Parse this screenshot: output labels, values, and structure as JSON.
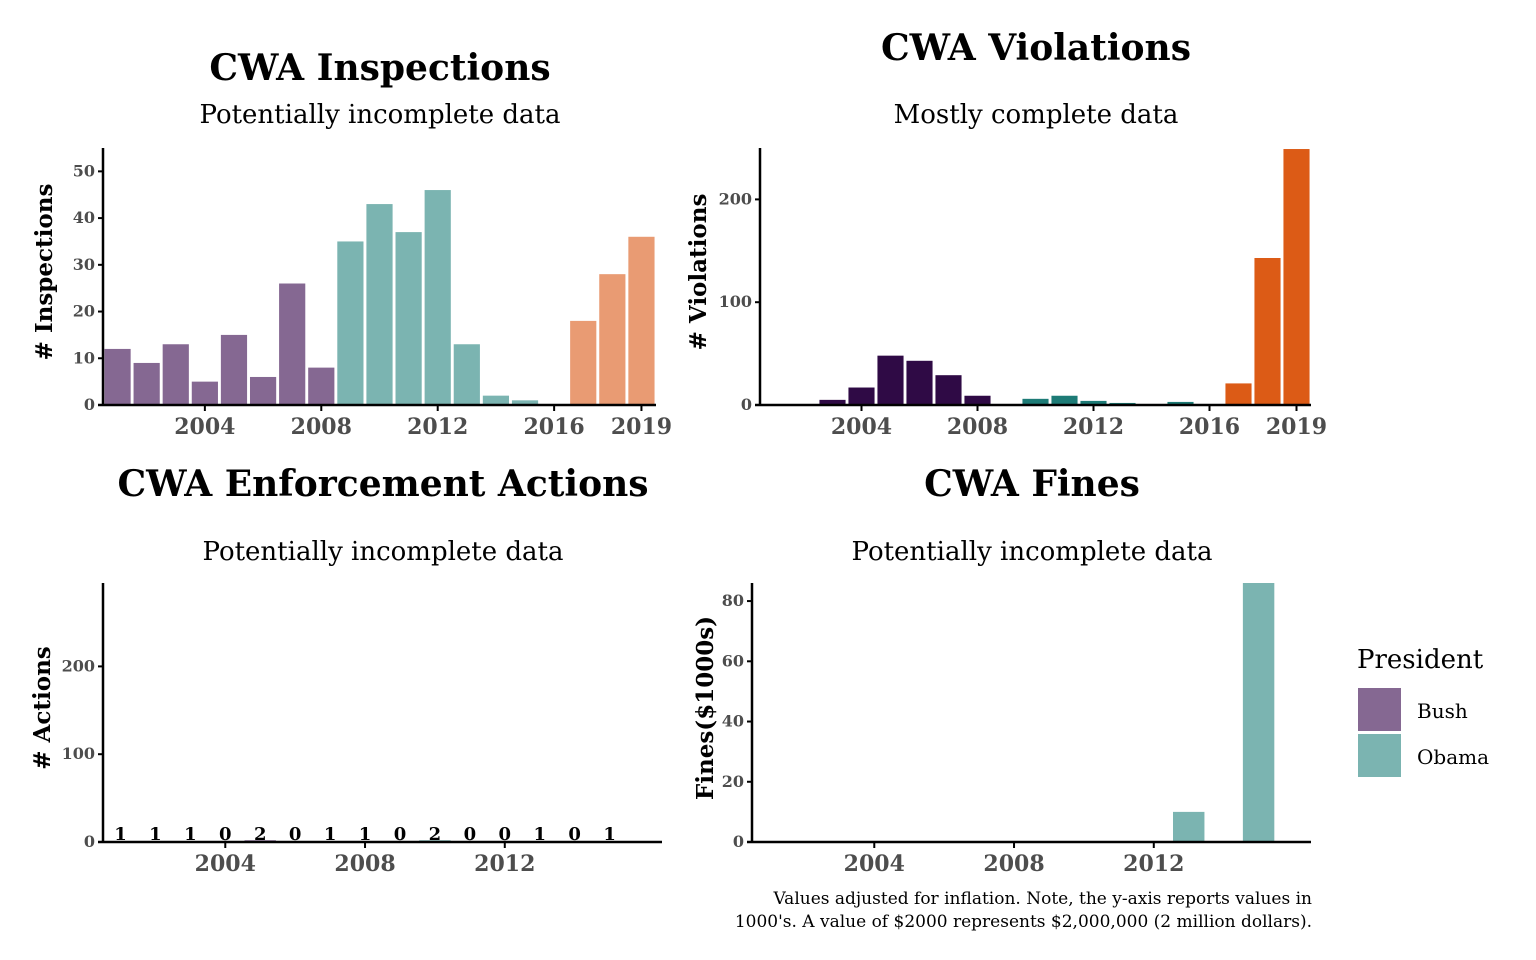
{
  "colors": {
    "bush": "#856892",
    "obama": "#7bb4b1",
    "trump": "#e99b73",
    "bush_dark": "#2f0a45",
    "obama_dark": "#1d7b76",
    "trump_dark": "#dc5b16"
  },
  "legend": {
    "title": "President",
    "items": [
      {
        "label": "Bush",
        "color": "#856892"
      },
      {
        "label": "Obama",
        "color": "#7bb4b1"
      }
    ]
  },
  "caption": {
    "line1": "Values adjusted for inflation. Note, the y-axis reports values in",
    "line2": "1000's. A value of $2000 represents $2,000,000 (2 million dollars)."
  },
  "chart_data": [
    {
      "id": "inspections",
      "type": "bar",
      "title": "CWA Inspections",
      "subtitle": "Potentially incomplete data",
      "ylabel": "# Inspections",
      "xlabel": "",
      "xlim": [
        2000.5,
        2019.5
      ],
      "ylim": [
        0,
        55
      ],
      "xticks": [
        "2004",
        "2008",
        "2012",
        "2016",
        "2019"
      ],
      "yticks": [
        "0",
        "10",
        "20",
        "30",
        "40",
        "50"
      ],
      "series": [
        {
          "name": "Bush",
          "color": "#856892",
          "x": [
            2001,
            2002,
            2003,
            2004,
            2005,
            2006,
            2007,
            2008
          ],
          "values": [
            12,
            9,
            13,
            5,
            15,
            6,
            26,
            8
          ]
        },
        {
          "name": "Obama",
          "color": "#7bb4b1",
          "x": [
            2009,
            2010,
            2011,
            2012,
            2013,
            2014,
            2015,
            2016
          ],
          "values": [
            35,
            43,
            37,
            46,
            13,
            2,
            1,
            0
          ]
        },
        {
          "color": "#e99b73",
          "x": [
            2017,
            2018,
            2019
          ],
          "values": [
            18,
            28,
            36
          ]
        }
      ]
    },
    {
      "id": "violations",
      "type": "bar",
      "title": "CWA Violations",
      "subtitle": "Mostly complete data",
      "ylabel": "# Violations",
      "xlabel": "",
      "xlim": [
        2000.5,
        2019.5
      ],
      "ylim": [
        0,
        250
      ],
      "xticks": [
        "2004",
        "2008",
        "2012",
        "2016",
        "2019"
      ],
      "yticks": [
        "0",
        "100",
        "200"
      ],
      "series": [
        {
          "name": "Bush",
          "color": "#2f0a45",
          "x": [
            2003,
            2004,
            2005,
            2006,
            2007,
            2008
          ],
          "values": [
            5,
            17,
            48,
            43,
            29,
            9
          ]
        },
        {
          "name": "Obama",
          "color": "#1d7b76",
          "x": [
            2010,
            2011,
            2012,
            2013,
            2015
          ],
          "values": [
            6,
            9,
            4,
            2,
            3
          ]
        },
        {
          "color": "#dc5b16",
          "x": [
            2017,
            2018,
            2019
          ],
          "values": [
            21,
            143,
            249
          ]
        }
      ]
    },
    {
      "id": "actions",
      "type": "bar",
      "title": "CWA Enforcement Actions",
      "subtitle": "Potentially incomplete data",
      "ylabel": "# Actions",
      "xlabel": "",
      "xlim": [
        2000.5,
        2016.5
      ],
      "ylim": [
        0,
        295
      ],
      "xticks": [
        "2004",
        "2008",
        "2012"
      ],
      "yticks": [
        "0",
        "100",
        "200"
      ],
      "series": [
        {
          "name": "Bush",
          "color": "#856892",
          "x": [
            2001,
            2002,
            2003,
            2004,
            2005,
            2006,
            2007,
            2008
          ],
          "values": [
            1,
            1,
            1,
            0,
            2,
            0,
            1,
            1
          ]
        },
        {
          "name": "Obama",
          "color": "#7bb4b1",
          "x": [
            2009,
            2010,
            2011,
            2012,
            2013,
            2014,
            2015
          ],
          "values": [
            0,
            2,
            0,
            0,
            1,
            0,
            1
          ]
        }
      ],
      "data_labels": [
        "1",
        "1",
        "1",
        "0",
        "2",
        "0",
        "1",
        "1",
        "0",
        "2",
        "0",
        "0",
        "1",
        "0",
        "1"
      ]
    },
    {
      "id": "fines",
      "type": "bar",
      "title": "CWA Fines",
      "subtitle": "Potentially incomplete data",
      "ylabel": "Fines($1000s)",
      "xlabel": "",
      "xlim": [
        2000.5,
        2016.5
      ],
      "ylim": [
        0,
        86
      ],
      "xticks": [
        "2004",
        "2008",
        "2012"
      ],
      "yticks": [
        "0",
        "20",
        "40",
        "60",
        "80"
      ],
      "series": [
        {
          "name": "Obama",
          "color": "#7bb4b1",
          "x": [
            2013,
            2015
          ],
          "values": [
            10,
            86
          ]
        }
      ]
    }
  ]
}
